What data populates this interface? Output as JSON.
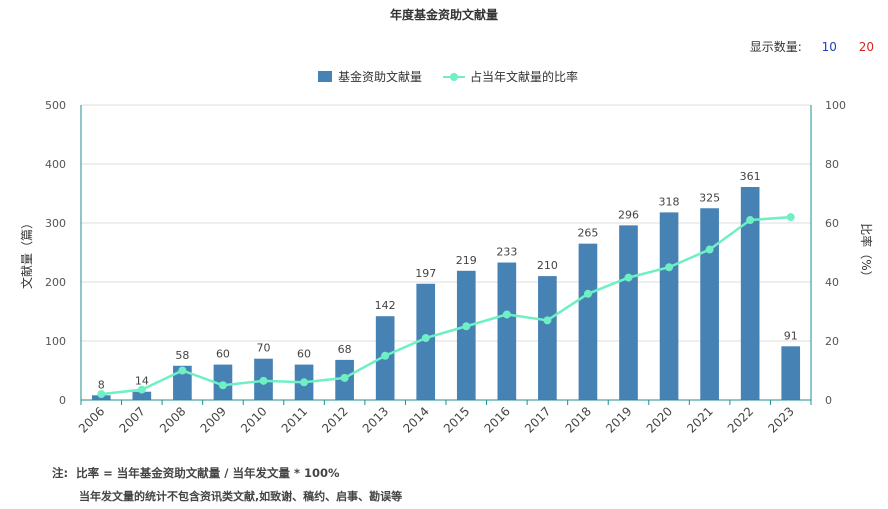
{
  "page": {
    "title": "年度基金资助文献量"
  },
  "controls": {
    "display_label": "显示数量:",
    "options": [
      "10",
      "20"
    ],
    "option_colors": [
      "#1a3fbf",
      "#d9261c"
    ]
  },
  "legend": {
    "placement": "top-center"
  },
  "colors": {
    "bar": "#4682b4",
    "line": "#6ef0c4",
    "axis": "#1b8f8f"
  },
  "chart_data": {
    "type": "bar",
    "categories": [
      "2006",
      "2007",
      "2008",
      "2009",
      "2010",
      "2011",
      "2012",
      "2013",
      "2014",
      "2015",
      "2016",
      "2017",
      "2018",
      "2019",
      "2020",
      "2021",
      "2022",
      "2023"
    ],
    "series": [
      {
        "name": "基金资助文献量",
        "type": "bar",
        "axis": "left",
        "values": [
          8,
          14,
          58,
          60,
          70,
          60,
          68,
          142,
          197,
          219,
          233,
          210,
          265,
          296,
          318,
          325,
          361,
          91
        ]
      },
      {
        "name": "占当年文献量的比率",
        "type": "line",
        "axis": "right",
        "values": [
          2,
          3.5,
          10,
          5,
          6.5,
          6,
          7.5,
          15,
          21,
          25,
          29,
          27,
          36,
          41.5,
          45,
          51,
          61,
          62
        ]
      }
    ],
    "ylabel": "文献量（篇）",
    "y2label": "比率（%）",
    "ylim": [
      0,
      500
    ],
    "y2lim": [
      0,
      100
    ],
    "yticks": [
      0,
      100,
      200,
      300,
      400,
      500
    ],
    "y2ticks": [
      0,
      20,
      40,
      60,
      80,
      100
    ],
    "grid": true
  },
  "notes": {
    "prefix": "注:",
    "line1": "比率 = 当年基金资助文献量 / 当年发文量 * 100%",
    "line2": "当年发文量的统计不包含资讯类文献,如致谢、稿约、启事、勘误等"
  }
}
